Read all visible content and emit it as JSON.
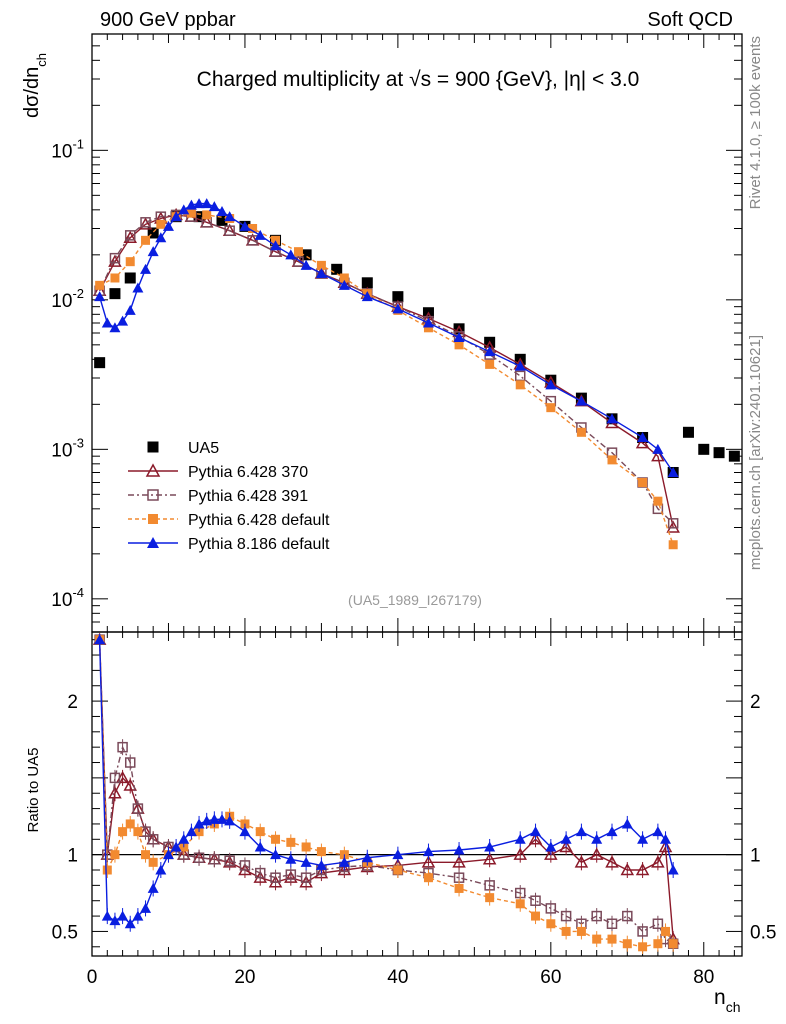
{
  "header": {
    "left": "900 GeV ppbar",
    "right": "Soft QCD",
    "title": "Charged multiplicity at √s = 900 {GeV}, |η| < 3.0",
    "analysis_id": "(UA5_1989_I267179)",
    "side_top": "Rivet 4.1.0, ≥ 100k events",
    "side_bottom": "mcplots.cern.ch [arXiv:2401.10621]"
  },
  "chart_data": [
    {
      "type": "scatter",
      "panel": "main",
      "ylabel": "dσ/dn_ch",
      "xlabel": "n_ch",
      "yscale": "log",
      "xlim": [
        0,
        85
      ],
      "ylim": [
        6e-05,
        0.6
      ],
      "yticks": [
        "10^-4",
        "10^-3",
        "10^-2",
        "10^-1"
      ],
      "xticks": [
        "0",
        "20",
        "40",
        "60",
        "80"
      ],
      "legend_position": "lower-left",
      "series": [
        {
          "name": "UA5",
          "color": "#000000",
          "marker": "filled-square",
          "x": [
            1,
            3,
            5,
            8,
            11,
            14,
            17,
            20,
            24,
            28,
            32,
            36,
            40,
            44,
            48,
            52,
            56,
            60,
            64,
            68,
            72,
            76,
            78,
            80,
            82,
            84
          ],
          "y": [
            0.0038,
            0.011,
            0.014,
            0.028,
            0.036,
            0.036,
            0.034,
            0.031,
            0.025,
            0.02,
            0.016,
            0.013,
            0.0105,
            0.0082,
            0.0064,
            0.0052,
            0.004,
            0.0029,
            0.0022,
            0.0016,
            0.0012,
            0.0007,
            0.0013,
            0.001,
            0.00095,
            0.0009
          ]
        },
        {
          "name": "Pythia 6.428 370",
          "color": "#8b1a2a",
          "marker": "open-triangle",
          "x": [
            1,
            3,
            5,
            7,
            9,
            11,
            13,
            15,
            18,
            21,
            24,
            27,
            30,
            33,
            36,
            40,
            44,
            48,
            52,
            56,
            60,
            64,
            68,
            72,
            74,
            76
          ],
          "y": [
            0.0115,
            0.018,
            0.026,
            0.032,
            0.035,
            0.037,
            0.036,
            0.033,
            0.029,
            0.025,
            0.021,
            0.018,
            0.015,
            0.013,
            0.011,
            0.009,
            0.0075,
            0.0061,
            0.0048,
            0.0037,
            0.0028,
            0.0021,
            0.0015,
            0.0011,
            0.0009,
            0.0003
          ]
        },
        {
          "name": "Pythia 6.428 391",
          "color": "#7a4a5a",
          "marker": "open-square",
          "x": [
            1,
            3,
            5,
            7,
            9,
            11,
            13,
            15,
            18,
            21,
            24,
            27,
            30,
            33,
            36,
            40,
            44,
            48,
            52,
            56,
            60,
            64,
            68,
            72,
            74,
            76
          ],
          "y": [
            0.0115,
            0.019,
            0.027,
            0.033,
            0.036,
            0.037,
            0.036,
            0.033,
            0.029,
            0.025,
            0.021,
            0.018,
            0.015,
            0.013,
            0.011,
            0.009,
            0.0072,
            0.0057,
            0.0043,
            0.0031,
            0.0021,
            0.0014,
            0.00095,
            0.0006,
            0.0004,
            0.00032
          ]
        },
        {
          "name": "Pythia 6.428 default",
          "color": "#f28a30",
          "marker": "filled-square",
          "x": [
            1,
            3,
            5,
            7,
            9,
            11,
            13,
            15,
            18,
            21,
            24,
            27,
            30,
            33,
            36,
            40,
            44,
            48,
            52,
            56,
            60,
            64,
            68,
            72,
            74,
            76
          ],
          "y": [
            0.0125,
            0.014,
            0.018,
            0.025,
            0.032,
            0.036,
            0.038,
            0.037,
            0.035,
            0.03,
            0.025,
            0.021,
            0.017,
            0.014,
            0.011,
            0.0085,
            0.0065,
            0.005,
            0.0037,
            0.0027,
            0.0019,
            0.0013,
            0.00085,
            0.0006,
            0.00045,
            0.00023
          ]
        },
        {
          "name": "Pythia 8.186 default",
          "color": "#0a1ee0",
          "marker": "filled-triangle",
          "x": [
            1,
            2,
            3,
            4,
            5,
            6,
            7,
            8,
            9,
            10,
            11,
            12,
            13,
            14,
            15,
            16,
            17,
            18,
            20,
            22,
            24,
            26,
            28,
            30,
            33,
            36,
            40,
            44,
            48,
            52,
            56,
            60,
            64,
            68,
            72,
            74,
            76
          ],
          "y": [
            0.0105,
            0.007,
            0.0065,
            0.0072,
            0.0085,
            0.012,
            0.016,
            0.021,
            0.026,
            0.031,
            0.036,
            0.04,
            0.043,
            0.044,
            0.044,
            0.042,
            0.039,
            0.036,
            0.031,
            0.027,
            0.023,
            0.02,
            0.017,
            0.015,
            0.0125,
            0.0105,
            0.0087,
            0.007,
            0.0056,
            0.0045,
            0.0036,
            0.0027,
            0.0021,
            0.0016,
            0.0012,
            0.001,
            0.0007
          ]
        }
      ]
    },
    {
      "type": "line",
      "panel": "ratio",
      "ylabel": "Ratio to UA5",
      "xlabel": "n_ch",
      "xlim": [
        0,
        85
      ],
      "ylim": [
        0.34,
        2.45
      ],
      "yticks": [
        "0.5",
        "1",
        "2"
      ],
      "xticks": [
        "0",
        "20",
        "40",
        "60",
        "80"
      ],
      "series": [
        {
          "name": "Pythia 6.428 370",
          "color": "#8b1a2a",
          "x": [
            1,
            2,
            3,
            4,
            5,
            6,
            7,
            8,
            10,
            12,
            14,
            16,
            18,
            20,
            22,
            24,
            26,
            28,
            30,
            33,
            36,
            40,
            44,
            48,
            52,
            56,
            58,
            60,
            62,
            64,
            66,
            68,
            70,
            72,
            74,
            75,
            76
          ],
          "y": [
            2.4,
            1.0,
            1.4,
            1.5,
            1.45,
            1.3,
            1.15,
            1.1,
            1.05,
            1.0,
            0.98,
            0.97,
            0.95,
            0.9,
            0.85,
            0.82,
            0.85,
            0.82,
            0.88,
            0.9,
            0.92,
            0.93,
            0.95,
            0.95,
            0.97,
            1.0,
            1.1,
            1.0,
            1.05,
            0.95,
            1.0,
            0.95,
            0.9,
            0.9,
            0.95,
            1.05,
            0.45
          ]
        },
        {
          "name": "Pythia 6.428 391",
          "color": "#7a4a5a",
          "x": [
            1,
            2,
            3,
            4,
            5,
            6,
            7,
            8,
            10,
            12,
            14,
            16,
            18,
            20,
            22,
            24,
            26,
            28,
            30,
            33,
            36,
            40,
            44,
            48,
            52,
            56,
            58,
            60,
            62,
            64,
            66,
            68,
            70,
            72,
            74,
            75,
            76
          ],
          "y": [
            2.4,
            1.0,
            1.5,
            1.7,
            1.6,
            1.3,
            1.15,
            1.1,
            1.05,
            1.0,
            0.98,
            0.97,
            0.96,
            0.93,
            0.88,
            0.85,
            0.87,
            0.85,
            0.9,
            0.92,
            0.93,
            0.9,
            0.88,
            0.85,
            0.8,
            0.75,
            0.7,
            0.65,
            0.6,
            0.55,
            0.6,
            0.55,
            0.6,
            0.5,
            0.55,
            0.45,
            0.42
          ]
        },
        {
          "name": "Pythia 6.428 default",
          "color": "#f28a30",
          "x": [
            1,
            2,
            3,
            4,
            5,
            6,
            7,
            8,
            10,
            12,
            14,
            16,
            18,
            20,
            22,
            24,
            26,
            28,
            30,
            33,
            36,
            40,
            44,
            48,
            52,
            56,
            58,
            60,
            62,
            64,
            66,
            68,
            70,
            72,
            74,
            75,
            76
          ],
          "y": [
            2.4,
            0.9,
            1.0,
            1.15,
            1.2,
            1.15,
            1.0,
            0.95,
            1.0,
            1.05,
            1.15,
            1.2,
            1.25,
            1.2,
            1.15,
            1.1,
            1.08,
            1.05,
            1.02,
            1.0,
            0.95,
            0.9,
            0.85,
            0.78,
            0.72,
            0.68,
            0.6,
            0.55,
            0.5,
            0.5,
            0.45,
            0.45,
            0.42,
            0.4,
            0.42,
            0.5,
            0.42
          ]
        },
        {
          "name": "Pythia 8.186 default",
          "color": "#0a1ee0",
          "x": [
            1,
            2,
            3,
            4,
            5,
            6,
            7,
            8,
            9,
            10,
            11,
            12,
            13,
            14,
            15,
            16,
            17,
            18,
            20,
            22,
            24,
            26,
            28,
            30,
            33,
            36,
            40,
            44,
            48,
            52,
            56,
            58,
            60,
            62,
            64,
            66,
            68,
            70,
            72,
            74,
            75,
            76
          ],
          "y": [
            2.4,
            0.6,
            0.57,
            0.6,
            0.55,
            0.6,
            0.65,
            0.78,
            0.9,
            1.0,
            1.05,
            1.1,
            1.15,
            1.2,
            1.22,
            1.23,
            1.23,
            1.22,
            1.15,
            1.05,
            1.0,
            0.97,
            0.95,
            0.93,
            0.95,
            0.98,
            1.0,
            1.02,
            1.03,
            1.05,
            1.1,
            1.15,
            1.05,
            1.1,
            1.15,
            1.1,
            1.15,
            1.2,
            1.1,
            1.15,
            1.1,
            0.9
          ]
        }
      ]
    }
  ]
}
